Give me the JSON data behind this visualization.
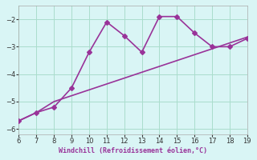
{
  "line1_x": [
    6,
    7,
    8,
    9,
    10,
    11,
    12,
    13,
    14,
    15,
    16,
    17,
    18,
    19
  ],
  "line1_y": [
    -5.7,
    -5.4,
    -5.2,
    -4.5,
    -3.2,
    -2.1,
    -2.6,
    -3.2,
    -1.9,
    -1.9,
    -2.5,
    -3.0,
    -3.0,
    -2.7
  ],
  "line2_x": [
    6,
    7,
    8,
    19
  ],
  "line2_y": [
    -5.7,
    -5.4,
    -5.0,
    -2.65
  ],
  "color": "#993399",
  "bg_color": "#d9f5f5",
  "grid_color": "#aaddcc",
  "xlabel": "Windchill (Refroidissement éolien,°C)",
  "xlim": [
    6,
    19
  ],
  "ylim": [
    -6.2,
    -1.5
  ],
  "yticks": [
    -6,
    -5,
    -4,
    -3,
    -2
  ],
  "xticks": [
    6,
    7,
    8,
    9,
    10,
    11,
    12,
    13,
    14,
    15,
    16,
    17,
    18,
    19
  ],
  "marker": "D",
  "markersize": 3,
  "linewidth": 1.2
}
